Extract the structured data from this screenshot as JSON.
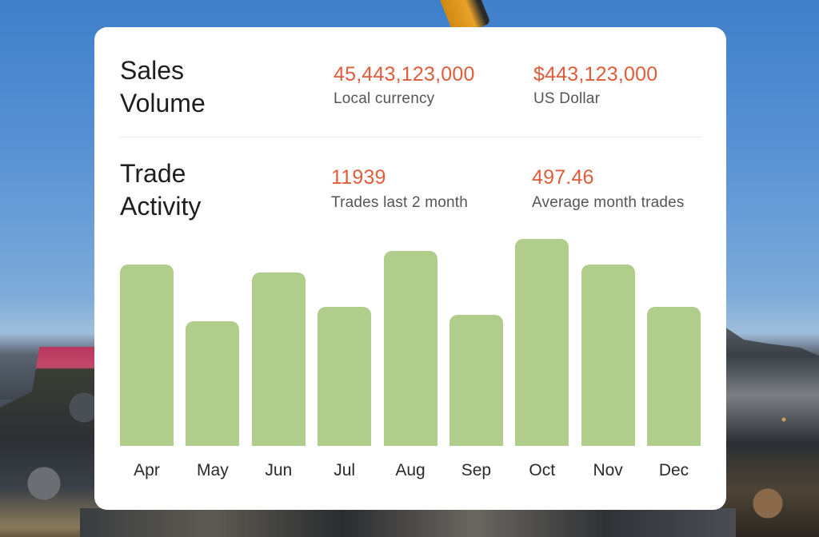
{
  "sales_volume": {
    "title_line1": "Sales",
    "title_line2": "Volume",
    "metrics": [
      {
        "value": "45,443,123,000",
        "label": "Local currency"
      },
      {
        "value": "$443,123,000",
        "label": "US Dollar"
      }
    ]
  },
  "trade_activity": {
    "title_line1": "Trade",
    "title_line2": "Activity",
    "metrics": [
      {
        "value": "11939",
        "label": "Trades last 2 month"
      },
      {
        "value": "497.46",
        "label": "Average month trades"
      }
    ]
  },
  "colors": {
    "accent": "#e05c3a",
    "bar": "#b1cd8b",
    "card": "#ffffff"
  },
  "chart_data": {
    "type": "bar",
    "title": "Trade Activity",
    "categories": [
      "Apr",
      "May",
      "Jun",
      "Jul",
      "Aug",
      "Sep",
      "Oct",
      "Nov",
      "Dec"
    ],
    "values": [
      225,
      155,
      215,
      173,
      242,
      163,
      257,
      225,
      173
    ],
    "xlabel": "",
    "ylabel": "",
    "ylim": [
      0,
      260
    ],
    "grid": false,
    "legend": "none",
    "note": "No y-axis shown; values are relative bar heights in pixels."
  }
}
